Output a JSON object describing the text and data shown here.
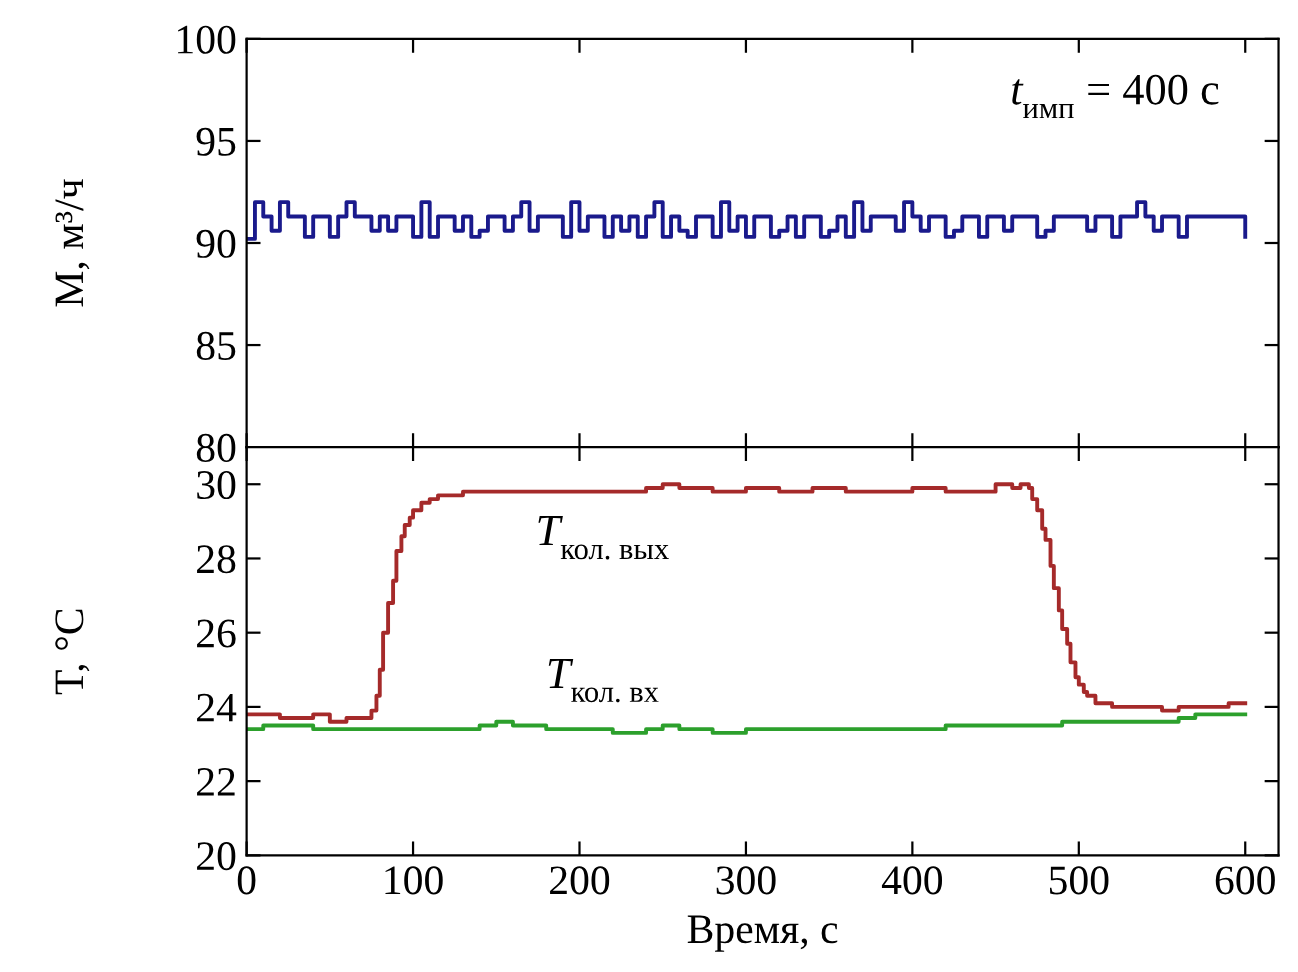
{
  "chart_data": [
    {
      "type": "step",
      "ylabel": "M, м³/ч",
      "xlim": [
        0,
        620
      ],
      "ylim": [
        80,
        100
      ],
      "yticks": [
        80,
        85,
        90,
        95,
        100
      ],
      "tick_labels": "y",
      "annotations": [
        "t$_{имп}$ = 400 с"
      ],
      "series": [
        {
          "color": "#1a1a8c",
          "x": [
            0,
            5,
            10,
            15,
            20,
            25,
            30,
            35,
            40,
            45,
            50,
            55,
            60,
            65,
            70,
            75,
            80,
            85,
            90,
            95,
            100,
            105,
            110,
            115,
            120,
            125,
            130,
            135,
            140,
            145,
            150,
            155,
            160,
            165,
            170,
            175,
            180,
            185,
            190,
            195,
            200,
            205,
            210,
            215,
            220,
            225,
            230,
            235,
            240,
            245,
            250,
            255,
            260,
            265,
            270,
            275,
            280,
            285,
            290,
            295,
            300,
            305,
            310,
            315,
            320,
            325,
            330,
            335,
            340,
            345,
            350,
            355,
            360,
            365,
            370,
            375,
            380,
            385,
            390,
            395,
            400,
            405,
            410,
            415,
            420,
            425,
            430,
            435,
            440,
            445,
            450,
            455,
            460,
            465,
            470,
            475,
            480,
            485,
            490,
            495,
            500,
            505,
            510,
            515,
            520,
            525,
            530,
            535,
            540,
            545,
            550,
            555,
            560,
            565,
            570,
            575,
            580,
            585,
            590,
            595,
            600
          ],
          "values": [
            90.2,
            92,
            91.3,
            90.6,
            92,
            91.3,
            91.3,
            90.3,
            91.3,
            91.3,
            90.3,
            91.3,
            92,
            91.3,
            91.3,
            90.6,
            91.3,
            90.6,
            91.3,
            91.3,
            90.3,
            92,
            90.3,
            91.3,
            91.3,
            90.6,
            91.3,
            90.3,
            90.6,
            91.3,
            91.3,
            90.6,
            91.3,
            92,
            90.6,
            91.3,
            91.3,
            91.3,
            90.3,
            92,
            90.6,
            91.3,
            91.3,
            90.3,
            91.3,
            90.6,
            91.3,
            90.3,
            91.3,
            92,
            90.3,
            91.3,
            90.6,
            90.3,
            91.3,
            91.3,
            90.3,
            92,
            90.6,
            91.3,
            90.3,
            91.3,
            91.3,
            90.3,
            90.6,
            91.3,
            90.3,
            91.3,
            91.3,
            90.3,
            90.6,
            91.3,
            90.3,
            92,
            90.6,
            91.3,
            91.3,
            91.3,
            90.6,
            92,
            91.3,
            90.6,
            91.3,
            91.3,
            90.3,
            90.6,
            91.3,
            91.3,
            90.3,
            91.3,
            91.3,
            90.6,
            91.3,
            91.3,
            91.3,
            90.3,
            90.6,
            91.3,
            91.3,
            91.3,
            91.3,
            90.6,
            91.3,
            91.3,
            90.3,
            91.3,
            91.3,
            92,
            91.3,
            90.6,
            91.3,
            91.3,
            90.3,
            91.3,
            91.3,
            91.3,
            91.3,
            91.3,
            91.3,
            91.3,
            90.3
          ]
        }
      ]
    },
    {
      "type": "step",
      "xlabel": "Время, с",
      "ylabel": "T, °C",
      "xlim": [
        0,
        620
      ],
      "ylim": [
        20,
        31
      ],
      "xticks": [
        0,
        100,
        200,
        300,
        400,
        500,
        600
      ],
      "yticks": [
        20,
        22,
        24,
        26,
        28,
        30
      ],
      "annotations": [
        "T$_{кол. вых}$",
        "T$_{кол. вх}$"
      ],
      "series": [
        {
          "color": "#a52a2a",
          "x": [
            0,
            10,
            20,
            30,
            40,
            50,
            60,
            65,
            70,
            75,
            78,
            80,
            82,
            85,
            88,
            90,
            93,
            95,
            98,
            100,
            105,
            110,
            115,
            120,
            130,
            140,
            160,
            180,
            200,
            220,
            240,
            250,
            260,
            280,
            300,
            320,
            340,
            360,
            380,
            400,
            420,
            440,
            450,
            460,
            465,
            470,
            472,
            475,
            478,
            480,
            483,
            485,
            488,
            490,
            493,
            495,
            498,
            500,
            503,
            505,
            510,
            515,
            520,
            530,
            540,
            550,
            560,
            570,
            580,
            590,
            600
          ],
          "values": [
            23.8,
            23.8,
            23.7,
            23.7,
            23.8,
            23.6,
            23.7,
            23.7,
            23.7,
            23.9,
            24.3,
            25.0,
            26.0,
            26.8,
            27.4,
            28.2,
            28.6,
            28.9,
            29.1,
            29.3,
            29.5,
            29.6,
            29.7,
            29.7,
            29.8,
            29.8,
            29.8,
            29.8,
            29.8,
            29.8,
            29.9,
            30.0,
            29.9,
            29.8,
            29.9,
            29.8,
            29.9,
            29.8,
            29.8,
            29.9,
            29.8,
            29.8,
            30.0,
            29.9,
            30.0,
            29.9,
            29.6,
            29.3,
            28.8,
            28.5,
            27.8,
            27.2,
            26.6,
            26.1,
            25.7,
            25.2,
            24.8,
            24.6,
            24.4,
            24.3,
            24.1,
            24.1,
            24.0,
            24.0,
            24.0,
            23.9,
            24.0,
            24.0,
            24.0,
            24.1,
            24.1
          ]
        },
        {
          "color": "#2ca02c",
          "x": [
            0,
            10,
            20,
            40,
            60,
            80,
            100,
            120,
            140,
            150,
            160,
            180,
            200,
            220,
            240,
            250,
            260,
            280,
            300,
            320,
            340,
            360,
            380,
            400,
            420,
            440,
            460,
            480,
            490,
            500,
            520,
            540,
            560,
            570,
            580,
            600
          ],
          "values": [
            23.4,
            23.5,
            23.5,
            23.4,
            23.4,
            23.4,
            23.4,
            23.4,
            23.5,
            23.6,
            23.5,
            23.4,
            23.4,
            23.3,
            23.4,
            23.5,
            23.4,
            23.3,
            23.4,
            23.4,
            23.4,
            23.4,
            23.4,
            23.4,
            23.5,
            23.5,
            23.5,
            23.5,
            23.6,
            23.6,
            23.6,
            23.6,
            23.7,
            23.8,
            23.8,
            23.8
          ]
        }
      ]
    }
  ]
}
